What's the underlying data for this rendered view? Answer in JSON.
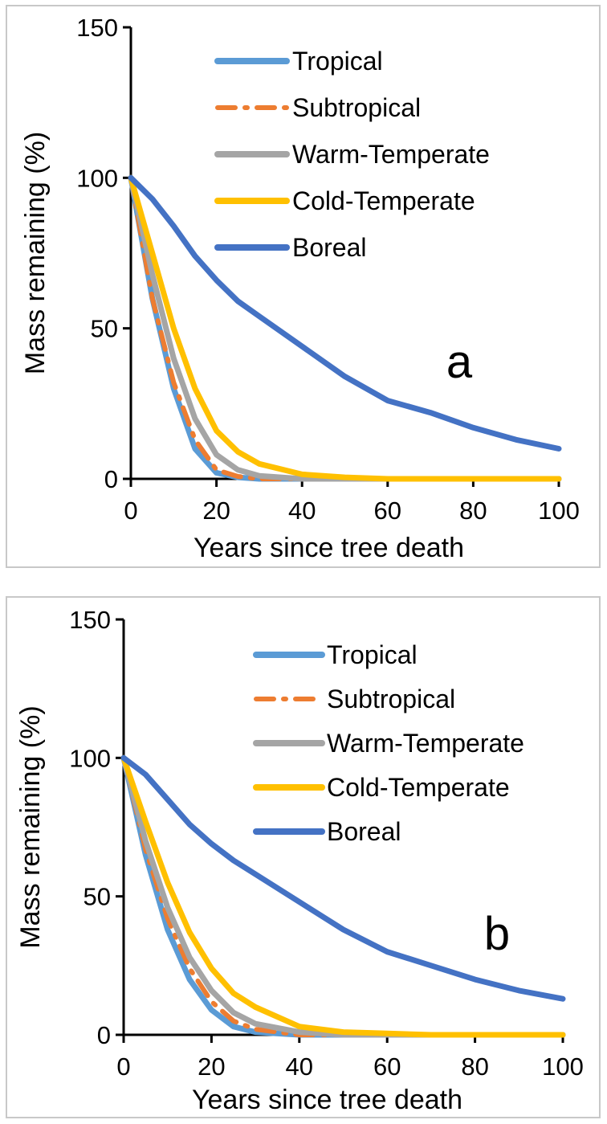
{
  "chart_data": [
    {
      "type": "line",
      "panel_label": "a",
      "xlabel": "Years since tree death",
      "ylabel": "Mass remaining (%)",
      "xlim": [
        0,
        100
      ],
      "ylim": [
        0,
        150
      ],
      "xticks": [
        0,
        20,
        40,
        60,
        80,
        100
      ],
      "yticks": [
        0,
        50,
        100,
        150
      ],
      "x": [
        0,
        5,
        10,
        15,
        20,
        25,
        30,
        40,
        50,
        60,
        70,
        80,
        90,
        100
      ],
      "series": [
        {
          "name": "Tropical",
          "color": "#5B9BD5",
          "style": "solid",
          "values": [
            100,
            60,
            30,
            10,
            2,
            0.5,
            0,
            0,
            0,
            0,
            0,
            0,
            0,
            0
          ]
        },
        {
          "name": "Subtropical",
          "color": "#ED7D31",
          "style": "dashdot",
          "values": [
            100,
            60,
            32,
            13,
            3,
            0.8,
            0,
            0,
            0,
            0,
            0,
            0,
            0,
            0
          ]
        },
        {
          "name": "Warm-Temperate",
          "color": "#A5A5A5",
          "style": "solid",
          "values": [
            100,
            68,
            40,
            20,
            8,
            3,
            1,
            0,
            0,
            0,
            0,
            0,
            0,
            0
          ]
        },
        {
          "name": "Cold-Temperate",
          "color": "#FFC000",
          "style": "solid",
          "values": [
            100,
            75,
            50,
            30,
            16,
            9,
            5,
            1.5,
            0.5,
            0,
            0,
            0,
            0,
            0
          ]
        },
        {
          "name": "Boreal",
          "color": "#4472C4",
          "style": "solid",
          "values": [
            100,
            93,
            84,
            74,
            66,
            59,
            54,
            44,
            34,
            26,
            22,
            17,
            13,
            10
          ]
        }
      ]
    },
    {
      "type": "line",
      "panel_label": "b",
      "xlabel": "Years since tree death",
      "ylabel": "Mass remaining (%)",
      "xlim": [
        0,
        100
      ],
      "ylim": [
        0,
        150
      ],
      "xticks": [
        0,
        20,
        40,
        60,
        80,
        100
      ],
      "yticks": [
        0,
        50,
        100,
        150
      ],
      "x": [
        0,
        5,
        10,
        15,
        20,
        25,
        30,
        40,
        50,
        60,
        70,
        80,
        90,
        100
      ],
      "series": [
        {
          "name": "Tropical",
          "color": "#5B9BD5",
          "style": "solid",
          "values": [
            100,
            65,
            38,
            20,
            9,
            3,
            1,
            0,
            0,
            0,
            0,
            0,
            0,
            0
          ]
        },
        {
          "name": "Subtropical",
          "color": "#ED7D31",
          "style": "dashdot",
          "values": [
            100,
            67,
            42,
            24,
            12,
            5,
            2,
            0,
            0,
            0,
            0,
            0,
            0,
            0
          ]
        },
        {
          "name": "Warm-Temperate",
          "color": "#A5A5A5",
          "style": "solid",
          "values": [
            100,
            70,
            46,
            28,
            16,
            8,
            4,
            1,
            0,
            0,
            0,
            0,
            0,
            0
          ]
        },
        {
          "name": "Cold-Temperate",
          "color": "#FFC000",
          "style": "solid",
          "values": [
            100,
            77,
            55,
            37,
            24,
            15,
            10,
            3,
            1,
            0.5,
            0,
            0,
            0,
            0
          ]
        },
        {
          "name": "Boreal",
          "color": "#4472C4",
          "style": "solid",
          "values": [
            100,
            94,
            85,
            76,
            69,
            63,
            58,
            48,
            38,
            30,
            25,
            20,
            16,
            13
          ]
        }
      ]
    }
  ]
}
